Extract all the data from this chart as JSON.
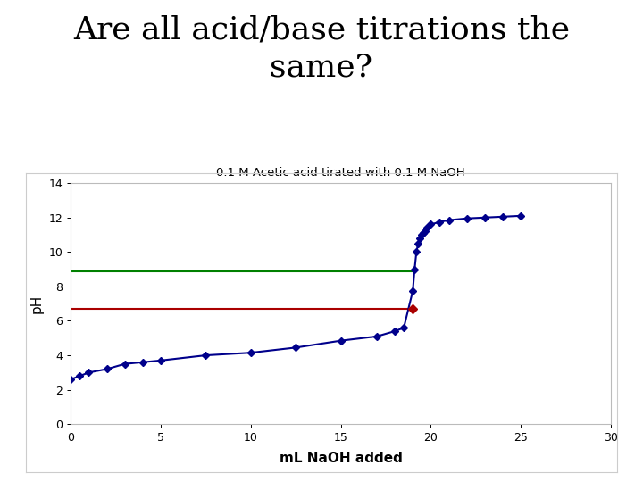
{
  "title": "Are all acid/base titrations the\nsame?",
  "chart_title": "0.1 M Acetic acid tirated with 0.1 M NaOH",
  "xlabel": "mL NaOH added",
  "ylabel": "pH",
  "xlim": [
    0,
    30
  ],
  "ylim": [
    0,
    14
  ],
  "xticks": [
    0,
    5,
    10,
    15,
    20,
    25,
    30
  ],
  "yticks": [
    0,
    2,
    4,
    6,
    8,
    10,
    12,
    14
  ],
  "green_line_y": 8.9,
  "red_line_y": 6.7,
  "equivalence_x": 19.0,
  "line_color": "#00008B",
  "marker_color": "#00008B",
  "green_color": "#008000",
  "red_color": "#AA0000",
  "bg_color": "#FFFFFF",
  "data_x": [
    0.0,
    0.5,
    1.0,
    2.0,
    3.0,
    4.0,
    5.0,
    7.5,
    10.0,
    12.5,
    15.0,
    17.0,
    18.0,
    18.5,
    19.0,
    19.1,
    19.2,
    19.3,
    19.4,
    19.5,
    19.6,
    19.7,
    19.8,
    20.0,
    20.5,
    21.0,
    22.0,
    23.0,
    24.0,
    25.0
  ],
  "data_y": [
    2.6,
    2.8,
    3.0,
    3.2,
    3.5,
    3.6,
    3.7,
    4.0,
    4.15,
    4.45,
    4.85,
    5.1,
    5.4,
    5.6,
    7.75,
    9.0,
    10.0,
    10.5,
    10.8,
    11.0,
    11.1,
    11.2,
    11.4,
    11.6,
    11.75,
    11.85,
    11.95,
    12.0,
    12.05,
    12.1
  ]
}
